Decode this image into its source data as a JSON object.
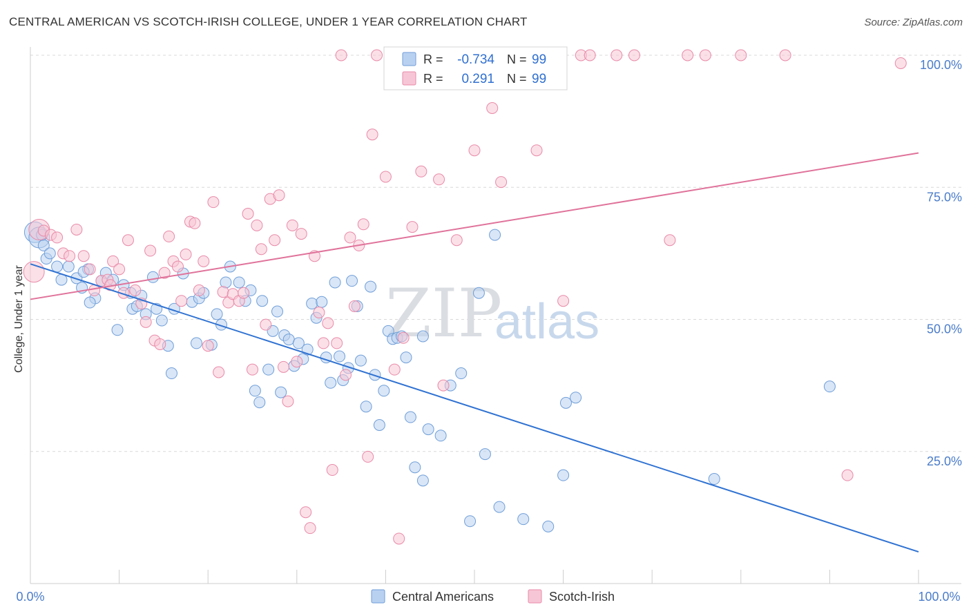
{
  "title": "CENTRAL AMERICAN VS SCOTCH-IRISH COLLEGE, UNDER 1 YEAR CORRELATION CHART",
  "source": "Source: ZipAtlas.com",
  "watermark": {
    "zip": "ZIP",
    "atlas": "atlas"
  },
  "legend_box": {
    "row1": {
      "r_label": "R =",
      "r_value": "-0.734",
      "n_label": "N =",
      "n_value": "99"
    },
    "row2": {
      "r_label": "R =",
      "r_value": "0.291",
      "n_label": "N =",
      "n_value": "99"
    }
  },
  "bottom_legend": {
    "series1": "Central Americans",
    "series2": "Scotch-Irish"
  },
  "colors": {
    "blue_fill": "#b9d1f1",
    "blue_stroke": "#6f9ed8",
    "blue_line": "#2f72d2",
    "pink_fill": "#f7c6d6",
    "pink_stroke": "#e88aa8",
    "pink_line": "#e0729a",
    "tick_text": "#4a7cc9",
    "grid": "#d8d8d8"
  },
  "chart_data": {
    "type": "scatter",
    "ylabel": "College, Under 1 year",
    "xlabel": "",
    "xlim": [
      0,
      100
    ],
    "ylim": [
      0,
      100
    ],
    "x_ticks": [
      "0.0%",
      "100.0%"
    ],
    "y_ticks": [
      "25.0%",
      "50.0%",
      "75.0%",
      "100.0%"
    ],
    "grid": "horizontal dashed",
    "legend": "top-center and bottom",
    "series": [
      {
        "name": "Central Americans",
        "color": "#6f9ed8",
        "trend": {
          "x": [
            0,
            100
          ],
          "y": [
            60.5,
            6.0
          ]
        },
        "points": [
          [
            0.5,
            66.5
          ],
          [
            1.0,
            65.5
          ],
          [
            1.5,
            64.0
          ],
          [
            1.8,
            61.5
          ],
          [
            2.2,
            62.5
          ],
          [
            3.5,
            57.5
          ],
          [
            4.3,
            60.0
          ],
          [
            5.2,
            57.8
          ],
          [
            6.5,
            59.5
          ],
          [
            7.3,
            54.0
          ],
          [
            6.0,
            59.0
          ],
          [
            6.7,
            53.2
          ],
          [
            8.0,
            57.3
          ],
          [
            8.5,
            58.8
          ],
          [
            9.3,
            57.5
          ],
          [
            9.8,
            48.0
          ],
          [
            10.5,
            56.5
          ],
          [
            11.3,
            55.0
          ],
          [
            11.5,
            52.0
          ],
          [
            12.0,
            52.5
          ],
          [
            12.5,
            54.5
          ],
          [
            13.0,
            51.0
          ],
          [
            13.8,
            58.0
          ],
          [
            14.2,
            52.0
          ],
          [
            14.8,
            49.8
          ],
          [
            15.5,
            45.0
          ],
          [
            15.9,
            39.8
          ],
          [
            16.2,
            52.0
          ],
          [
            17.2,
            58.7
          ],
          [
            18.2,
            53.3
          ],
          [
            18.7,
            45.5
          ],
          [
            19.0,
            54.0
          ],
          [
            19.5,
            55.0
          ],
          [
            20.4,
            45.2
          ],
          [
            21.0,
            51.0
          ],
          [
            21.5,
            49.0
          ],
          [
            22.0,
            57.0
          ],
          [
            22.5,
            60.0
          ],
          [
            23.5,
            57.0
          ],
          [
            24.2,
            53.5
          ],
          [
            24.8,
            55.5
          ],
          [
            25.3,
            36.5
          ],
          [
            25.8,
            34.3
          ],
          [
            26.1,
            53.5
          ],
          [
            26.8,
            40.5
          ],
          [
            27.3,
            47.8
          ],
          [
            27.8,
            51.5
          ],
          [
            28.2,
            36.2
          ],
          [
            28.6,
            47.0
          ],
          [
            29.1,
            46.2
          ],
          [
            29.7,
            41.2
          ],
          [
            30.2,
            45.5
          ],
          [
            30.7,
            42.5
          ],
          [
            31.2,
            44.3
          ],
          [
            31.7,
            53.0
          ],
          [
            32.2,
            50.3
          ],
          [
            32.8,
            53.3
          ],
          [
            33.3,
            42.8
          ],
          [
            33.8,
            38.0
          ],
          [
            34.3,
            57.0
          ],
          [
            34.8,
            43.0
          ],
          [
            35.2,
            38.5
          ],
          [
            35.8,
            40.8
          ],
          [
            36.2,
            57.3
          ],
          [
            36.8,
            52.5
          ],
          [
            37.2,
            42.2
          ],
          [
            37.8,
            33.5
          ],
          [
            38.3,
            56.2
          ],
          [
            38.8,
            39.5
          ],
          [
            39.3,
            30.0
          ],
          [
            39.8,
            36.5
          ],
          [
            40.3,
            47.8
          ],
          [
            40.8,
            46.3
          ],
          [
            41.3,
            46.5
          ],
          [
            41.8,
            46.8
          ],
          [
            42.3,
            42.8
          ],
          [
            42.8,
            31.5
          ],
          [
            43.3,
            22.0
          ],
          [
            44.2,
            19.5
          ],
          [
            44.2,
            46.8
          ],
          [
            44.8,
            29.2
          ],
          [
            46.2,
            28.0
          ],
          [
            47.3,
            37.5
          ],
          [
            48.5,
            39.8
          ],
          [
            49.5,
            11.8
          ],
          [
            50.5,
            55.0
          ],
          [
            51.2,
            24.5
          ],
          [
            52.3,
            66.0
          ],
          [
            52.8,
            14.5
          ],
          [
            55.5,
            12.2
          ],
          [
            58.3,
            10.8
          ],
          [
            60.0,
            20.5
          ],
          [
            60.3,
            34.2
          ],
          [
            61.4,
            35.2
          ],
          [
            77.0,
            19.8
          ],
          [
            90.0,
            37.3
          ],
          [
            1.3,
            66.0
          ],
          [
            3.0,
            60.0
          ],
          [
            5.8,
            56.0
          ]
        ]
      },
      {
        "name": "Scotch-Irish",
        "color": "#e88aa8",
        "trend": {
          "x": [
            0,
            100
          ],
          "y": [
            53.8,
            81.5
          ]
        },
        "points": [
          [
            0.4,
            59.0
          ],
          [
            1.0,
            67.0
          ],
          [
            1.5,
            66.8
          ],
          [
            2.3,
            66.0
          ],
          [
            3.0,
            65.5
          ],
          [
            3.7,
            62.5
          ],
          [
            4.4,
            62.0
          ],
          [
            5.2,
            67.0
          ],
          [
            6.0,
            62.0
          ],
          [
            6.7,
            59.5
          ],
          [
            7.2,
            55.5
          ],
          [
            8.0,
            57.3
          ],
          [
            8.7,
            57.5
          ],
          [
            9.3,
            61.0
          ],
          [
            10.0,
            59.5
          ],
          [
            10.5,
            55.0
          ],
          [
            11.0,
            65.0
          ],
          [
            11.8,
            55.5
          ],
          [
            12.5,
            53.0
          ],
          [
            13.0,
            49.5
          ],
          [
            13.5,
            63.0
          ],
          [
            14.0,
            46.0
          ],
          [
            14.6,
            45.3
          ],
          [
            15.1,
            58.8
          ],
          [
            15.6,
            65.7
          ],
          [
            16.1,
            61.0
          ],
          [
            16.6,
            60.0
          ],
          [
            17.0,
            53.5
          ],
          [
            17.5,
            62.3
          ],
          [
            18.0,
            68.5
          ],
          [
            18.5,
            68.2
          ],
          [
            19.0,
            55.5
          ],
          [
            19.5,
            61.0
          ],
          [
            20.0,
            45.0
          ],
          [
            20.6,
            72.2
          ],
          [
            21.2,
            40.0
          ],
          [
            21.7,
            55.2
          ],
          [
            22.3,
            53.2
          ],
          [
            22.8,
            54.8
          ],
          [
            23.5,
            53.5
          ],
          [
            24.0,
            55.0
          ],
          [
            24.5,
            70.0
          ],
          [
            25.0,
            40.5
          ],
          [
            25.5,
            67.8
          ],
          [
            26.0,
            63.3
          ],
          [
            26.5,
            49.0
          ],
          [
            27.0,
            72.8
          ],
          [
            27.5,
            65.0
          ],
          [
            28.0,
            73.5
          ],
          [
            28.5,
            41.0
          ],
          [
            29.0,
            34.5
          ],
          [
            29.5,
            67.8
          ],
          [
            30.0,
            42.0
          ],
          [
            30.5,
            66.2
          ],
          [
            31.0,
            13.5
          ],
          [
            31.5,
            10.5
          ],
          [
            32.0,
            62.0
          ],
          [
            32.5,
            51.3
          ],
          [
            33.0,
            45.5
          ],
          [
            33.5,
            49.3
          ],
          [
            34.0,
            21.5
          ],
          [
            34.5,
            45.5
          ],
          [
            35.0,
            100.0
          ],
          [
            35.5,
            39.5
          ],
          [
            36.0,
            65.5
          ],
          [
            36.5,
            52.5
          ],
          [
            37.0,
            64.0
          ],
          [
            37.5,
            68.0
          ],
          [
            38.0,
            24.0
          ],
          [
            38.5,
            85.0
          ],
          [
            39.0,
            100.0
          ],
          [
            40.0,
            77.0
          ],
          [
            41.0,
            40.5
          ],
          [
            41.5,
            8.5
          ],
          [
            42.0,
            46.5
          ],
          [
            43.0,
            67.5
          ],
          [
            44.0,
            78.0
          ],
          [
            45.0,
            100.0
          ],
          [
            46.0,
            76.5
          ],
          [
            46.5,
            37.5
          ],
          [
            48.0,
            65.0
          ],
          [
            50.0,
            82.0
          ],
          [
            52.0,
            90.0
          ],
          [
            53.0,
            76.0
          ],
          [
            55.0,
            100.0
          ],
          [
            57.0,
            82.0
          ],
          [
            60.0,
            53.5
          ],
          [
            62.0,
            100.0
          ],
          [
            63.0,
            100.0
          ],
          [
            66.0,
            100.0
          ],
          [
            68.0,
            100.0
          ],
          [
            72.0,
            65.0
          ],
          [
            74.0,
            100.0
          ],
          [
            76.0,
            100.0
          ],
          [
            80.0,
            100.0
          ],
          [
            85.0,
            100.0
          ],
          [
            92.0,
            20.5
          ],
          [
            98.0,
            98.5
          ],
          [
            9.0,
            56.5
          ]
        ]
      }
    ]
  }
}
